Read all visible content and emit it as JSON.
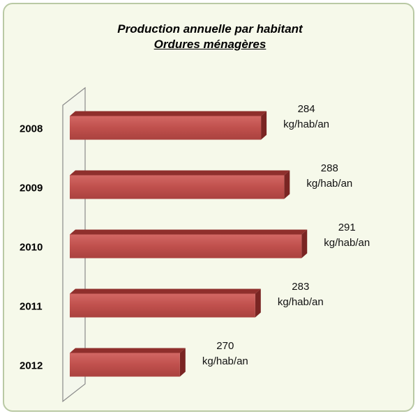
{
  "chart_data": {
    "type": "bar",
    "orientation": "horizontal",
    "title": "Production annuelle par habitant",
    "subtitle": "Ordures ménagères",
    "categories": [
      "2008",
      "2009",
      "2010",
      "2011",
      "2012"
    ],
    "values": [
      284,
      288,
      291,
      283,
      270
    ],
    "value_labels": [
      "284 kg/hab/an",
      "288 kg/hab/an",
      "291 kg/hab/an",
      "283 kg/hab/an",
      "270 kg/hab/an"
    ],
    "color": "#c0504d",
    "xlim": [
      251,
      300
    ]
  }
}
